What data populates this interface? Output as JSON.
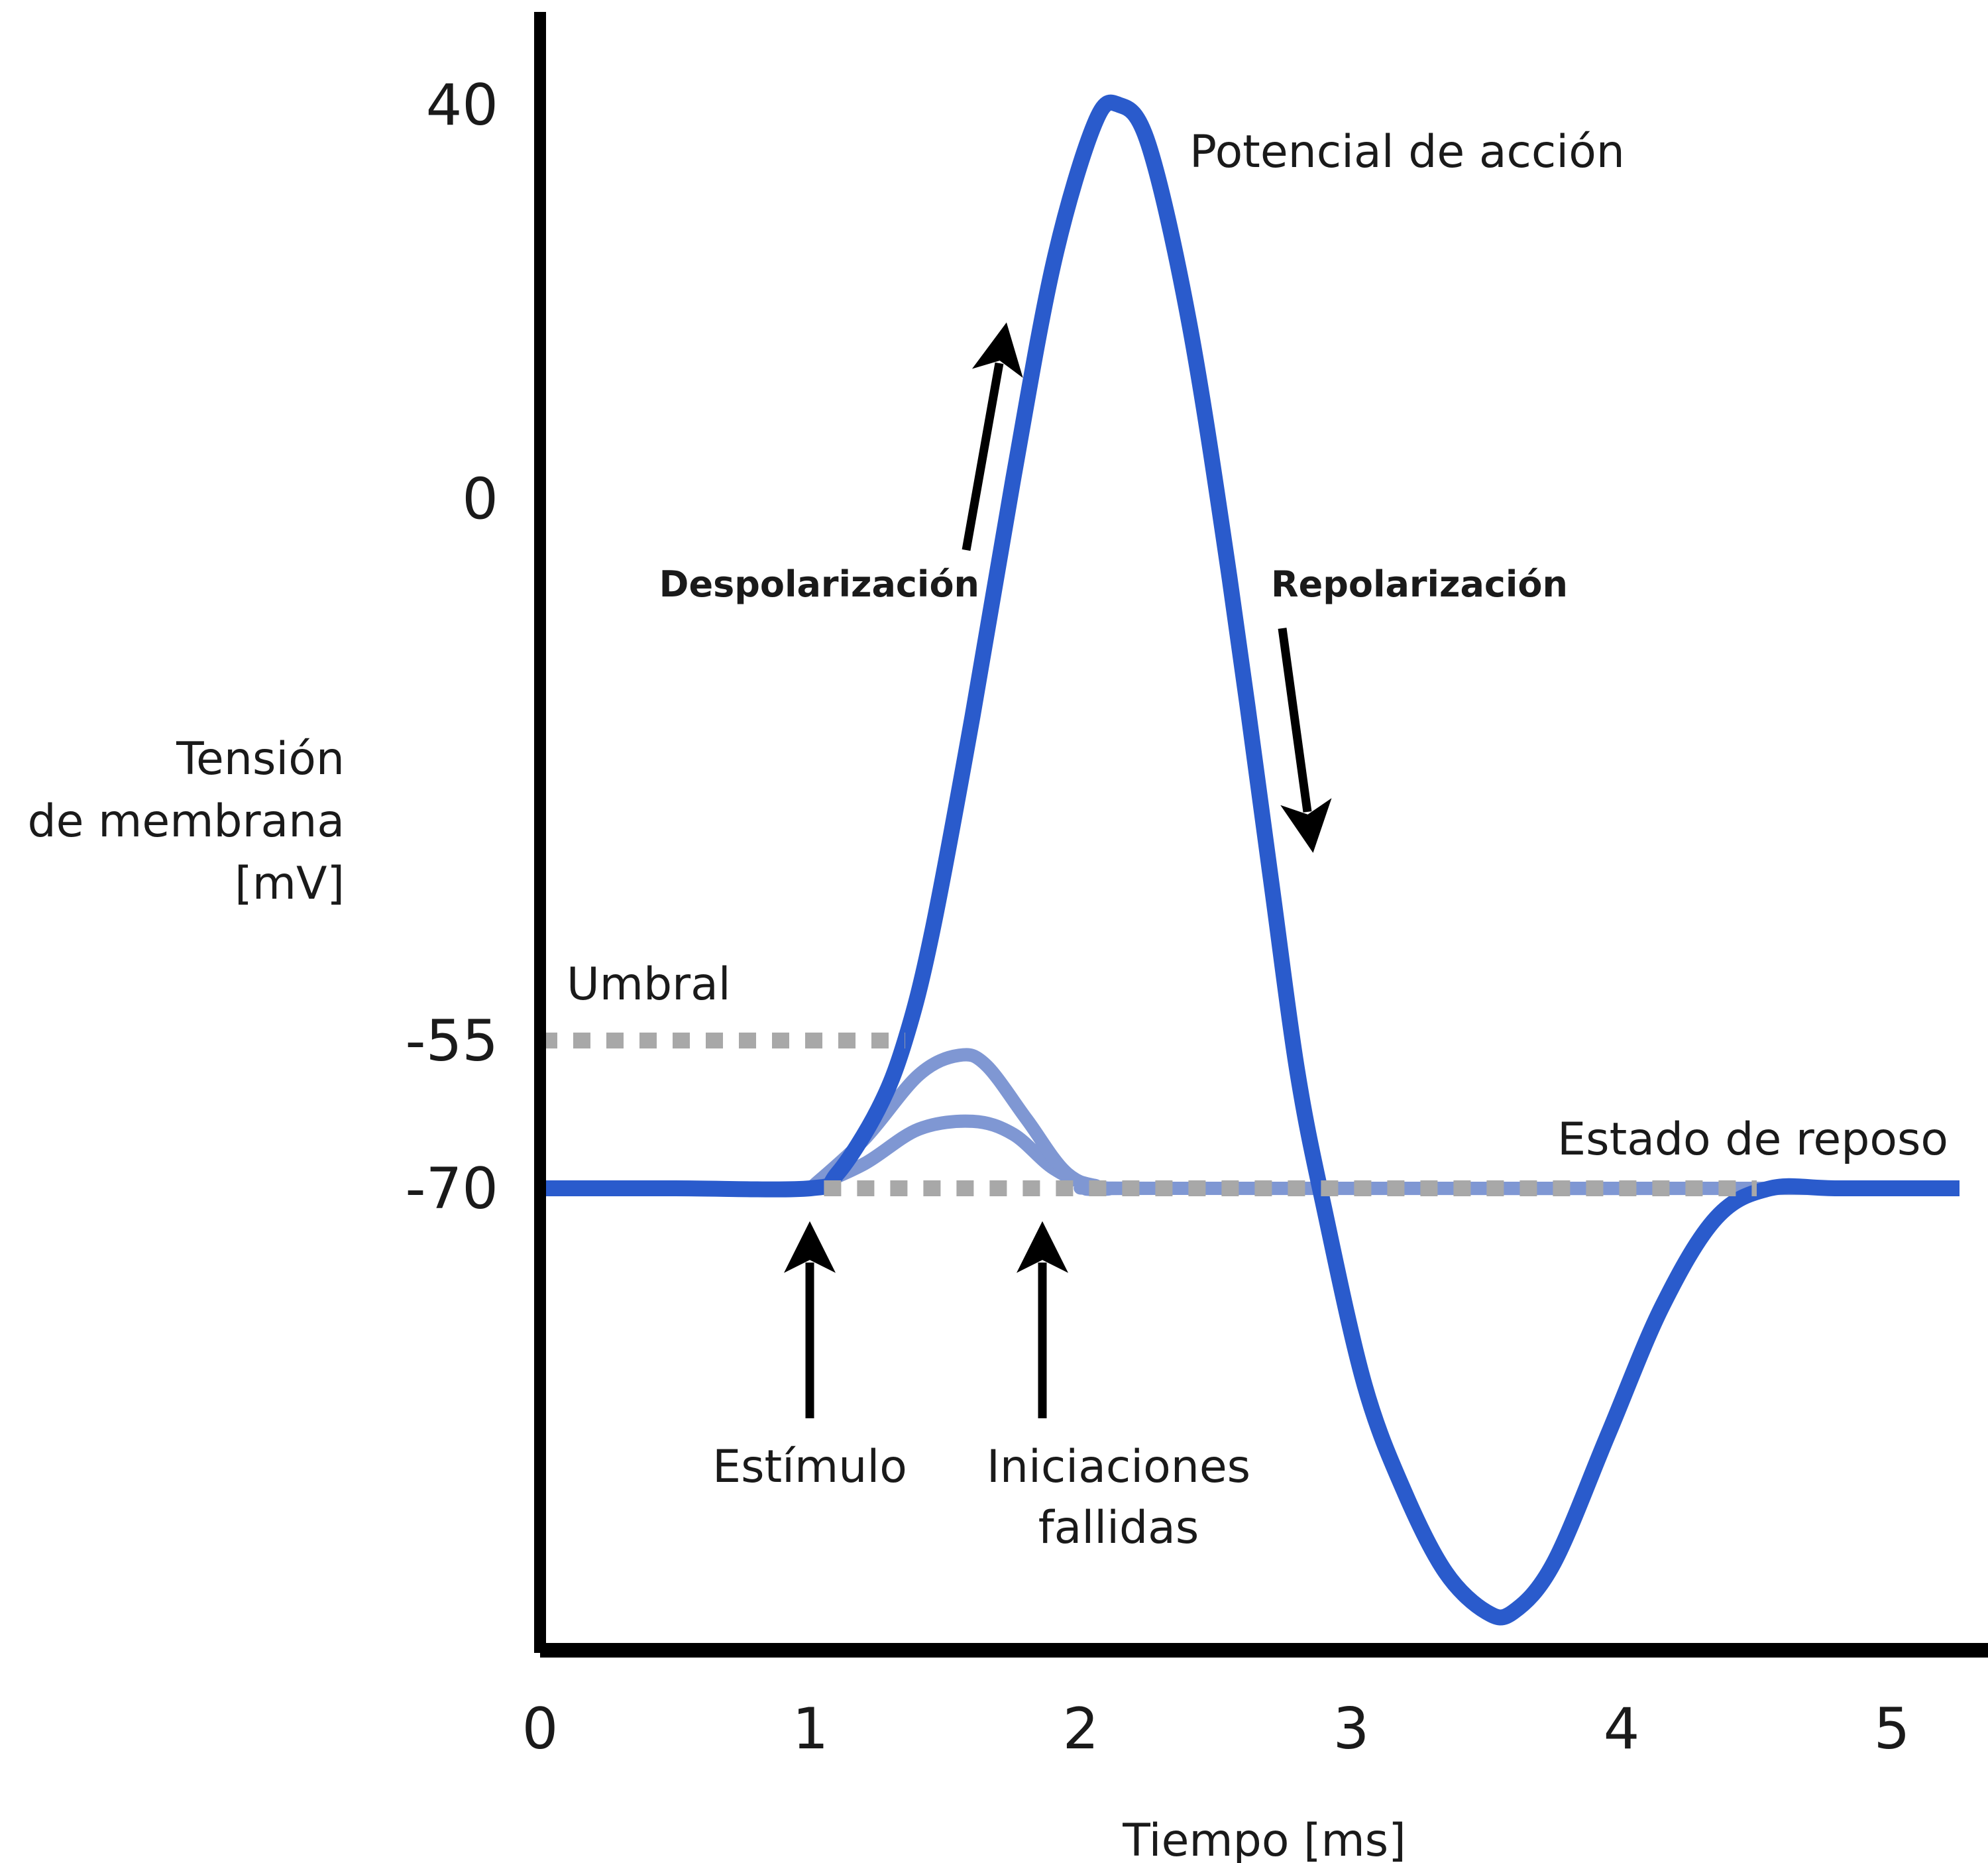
{
  "chart_data": {
    "type": "line",
    "xlabel": "Tiempo [ms]",
    "ylabel_lines": [
      "Tensión",
      "de membrana",
      "[mV]"
    ],
    "x_ticks": [
      "0",
      "1",
      "2",
      "3",
      "4",
      "5"
    ],
    "y_ticks": [
      "40",
      "0",
      "-55",
      "-70"
    ],
    "xlim": [
      0,
      5.3
    ],
    "ylim": [
      -120,
      50
    ],
    "colors": {
      "action_potential": "#2a5bcc",
      "failed_initiations": "#7f97d3",
      "reference_lines": "#a8a8a8",
      "axes": "#000000",
      "arrows": "#000000"
    },
    "series": [
      {
        "id": "action_potential",
        "x": [
          0,
          0.5,
          1.0,
          1.1,
          1.25,
          1.35,
          1.45,
          1.6,
          1.75,
          1.9,
          2.05,
          2.14,
          2.25,
          2.4,
          2.55,
          2.7,
          2.8,
          2.9,
          3.05,
          3.2,
          3.35,
          3.5,
          3.6,
          3.75,
          3.95,
          4.15,
          4.35,
          4.55,
          4.8,
          5.25
        ],
        "y": [
          -70,
          -70,
          -70,
          -68.5,
          -62,
          -55,
          -44,
          -22,
          2,
          24,
          38,
          40,
          36,
          18,
          -8,
          -38,
          -58,
          -72,
          -90,
          -101,
          -109,
          -113,
          -113,
          -108,
          -95,
          -82,
          -73,
          -70,
          -70,
          -70
        ]
      },
      {
        "id": "failed_initiation_high",
        "x": [
          1.0,
          1.2,
          1.4,
          1.55,
          1.65,
          1.8,
          1.95,
          2.1,
          2.3,
          5.25
        ],
        "y": [
          -70,
          -65,
          -58.5,
          -56.5,
          -57.5,
          -63,
          -68.5,
          -70,
          -70,
          -70
        ]
      },
      {
        "id": "failed_initiation_low",
        "x": [
          1.0,
          1.2,
          1.4,
          1.6,
          1.75,
          1.9,
          2.05,
          2.3,
          5.25
        ],
        "y": [
          -70,
          -67.5,
          -64,
          -63.2,
          -64.5,
          -68,
          -69.7,
          -70,
          -70
        ]
      }
    ],
    "reference_lines": [
      {
        "label": "Umbral",
        "y": -55,
        "x_range": [
          0,
          1.35
        ]
      },
      {
        "label": "Estado de reposo",
        "y": -70,
        "x_range": [
          1.05,
          4.5
        ]
      }
    ],
    "annotations": {
      "title": "Potencial de acción",
      "depolarization": "Despolarización",
      "repolarization": "Repolarización",
      "threshold": "Umbral",
      "resting": "Estado de reposo",
      "stimulus": "Estímulo",
      "failed_line1": "Iniciaciones",
      "failed_line2": "fallidas"
    }
  }
}
